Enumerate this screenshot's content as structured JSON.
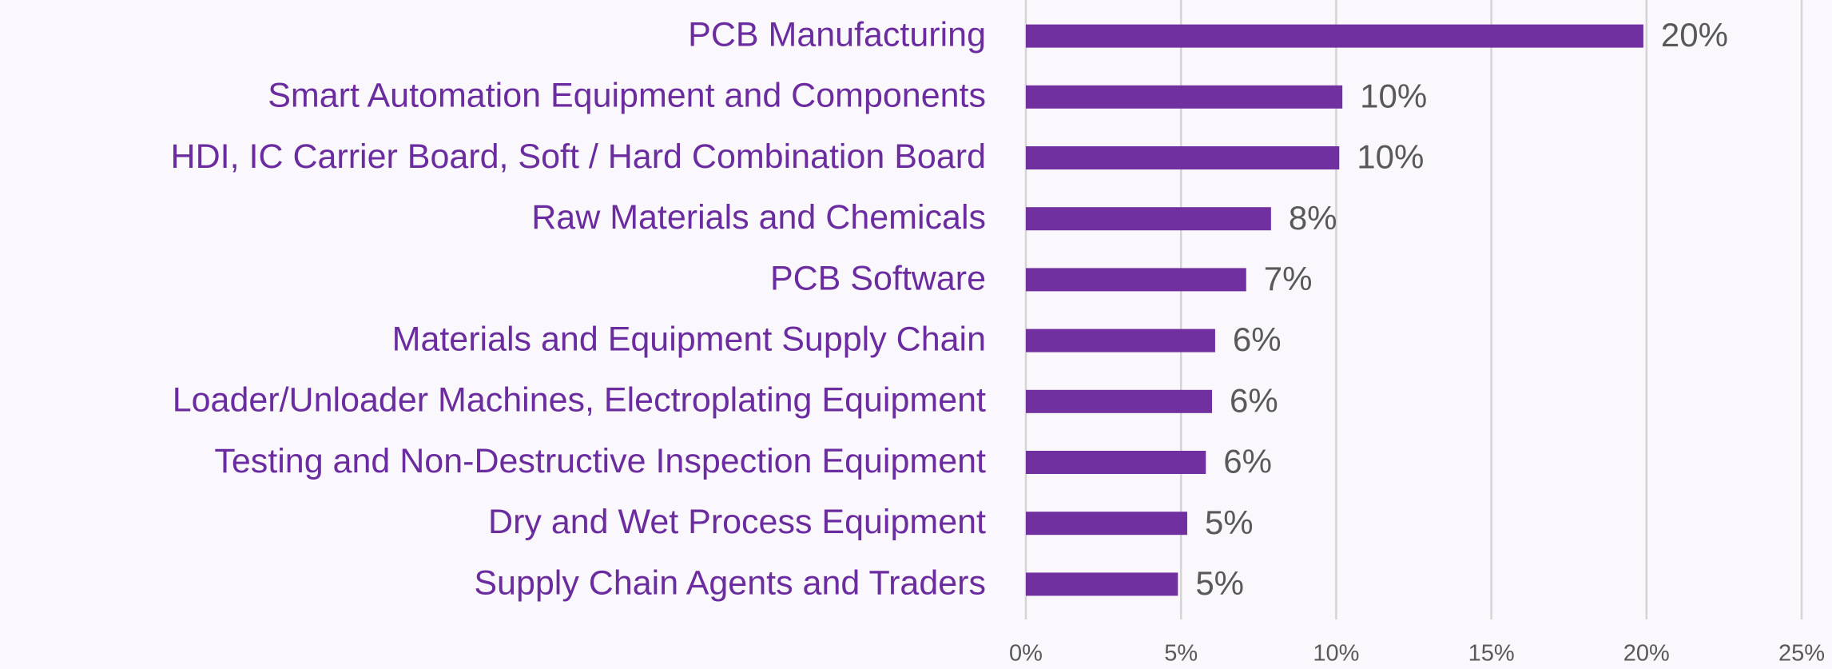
{
  "chart_data": {
    "type": "bar",
    "orientation": "horizontal",
    "categories": [
      "PCB Manufacturing",
      "Smart Automation Equipment and Components",
      "HDI, IC Carrier Board, Soft / Hard Combination Board",
      "Raw Materials and Chemicals",
      "PCB Software",
      "Materials and Equipment Supply Chain",
      "Loader/Unloader Machines, Electroplating Equipment",
      "Testing and Non-Destructive Inspection Equipment",
      "Dry and Wet Process Equipment",
      "Supply Chain Agents and Traders"
    ],
    "values": [
      19.9,
      10.2,
      10.1,
      7.9,
      7.1,
      6.1,
      6.0,
      5.8,
      5.2,
      4.9
    ],
    "value_labels": [
      "20%",
      "10%",
      "10%",
      "8%",
      "7%",
      "6%",
      "6%",
      "6%",
      "5%",
      "5%"
    ],
    "color": "#7030a0",
    "xlim": [
      0,
      25
    ],
    "xticks": [
      {
        "value": 0,
        "label": "0%"
      },
      {
        "value": 5,
        "label": "5%"
      },
      {
        "value": 10,
        "label": "10%"
      },
      {
        "value": 15,
        "label": "15%"
      },
      {
        "value": 20,
        "label": "20%"
      },
      {
        "value": 25,
        "label": "25%"
      }
    ],
    "grid": true
  }
}
